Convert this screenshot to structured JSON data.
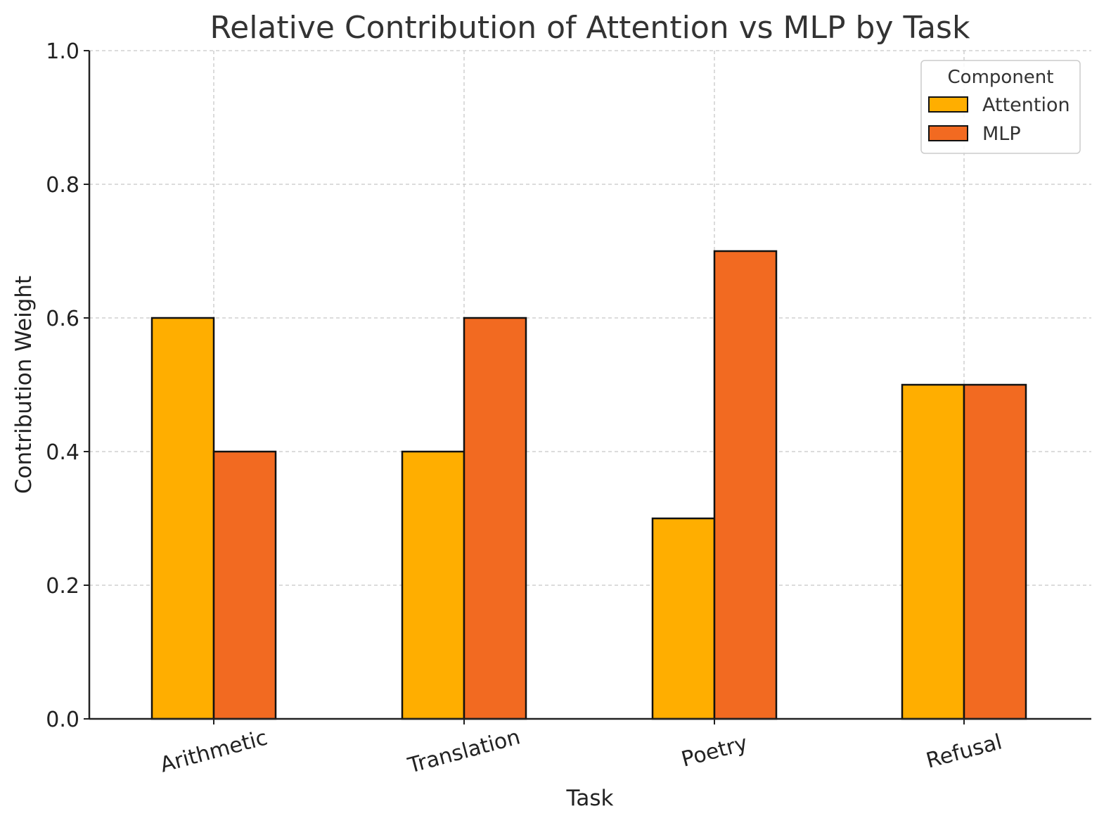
{
  "chart_data": {
    "type": "bar",
    "title": "Relative Contribution of Attention vs MLP by Task",
    "xlabel": "Task",
    "ylabel": "Contribution Weight",
    "categories": [
      "Arithmetic",
      "Translation",
      "Poetry",
      "Refusal"
    ],
    "series": [
      {
        "name": "Attention",
        "color": "#ffae00",
        "values": [
          0.6,
          0.4,
          0.3,
          0.5
        ]
      },
      {
        "name": "MLP",
        "color": "#f26a21",
        "values": [
          0.4,
          0.6,
          0.7,
          0.5
        ]
      }
    ],
    "ylim": [
      0,
      1.0
    ],
    "yticks": [
      "0.0",
      "0.2",
      "0.4",
      "0.6",
      "0.8",
      "1.0"
    ],
    "grid": true,
    "legend": {
      "title": "Component",
      "position": "top-right"
    }
  }
}
